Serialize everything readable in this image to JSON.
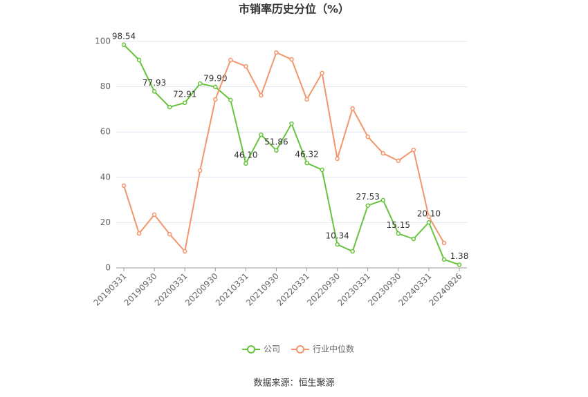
{
  "chart_data": {
    "type": "line",
    "title": "市销率历史分位（%）",
    "categories": [
      "20190331",
      null,
      "20190930",
      null,
      "20200331",
      null,
      "20200930",
      null,
      "20210331",
      null,
      "20210930",
      null,
      "20220331",
      null,
      "20220930",
      null,
      "20230331",
      null,
      "20230930",
      null,
      "20240331",
      null,
      "20240826"
    ],
    "series": [
      {
        "name": "公司",
        "color": "#66c43c",
        "values": [
          98.54,
          91.8,
          77.93,
          71.0,
          72.91,
          81.4,
          79.9,
          74.1,
          46.1,
          58.8,
          51.86,
          63.7,
          46.32,
          43.3,
          10.34,
          7.3,
          27.53,
          29.9,
          15.15,
          12.8,
          20.1,
          3.7,
          1.38
        ],
        "value_labels": [
          "98.54",
          null,
          "77.93",
          null,
          "72.91",
          null,
          "79.90",
          null,
          "46.10",
          null,
          "51.86",
          null,
          "46.32",
          null,
          "10.34",
          null,
          "27.53",
          null,
          "15.15",
          null,
          "20.10",
          null,
          "1.38"
        ]
      },
      {
        "name": "行业中位数",
        "color": "#f3956a",
        "values": [
          36.3,
          15.2,
          23.5,
          14.9,
          7.3,
          43.0,
          74.4,
          91.8,
          89.0,
          76.2,
          95.1,
          92.1,
          74.4,
          86.0,
          48.2,
          70.4,
          57.9,
          50.6,
          47.3,
          52.1,
          22.6,
          11.0,
          null
        ]
      }
    ],
    "ylim": [
      0,
      100
    ],
    "yticks": [
      0,
      20,
      40,
      60,
      80,
      100
    ],
    "grid": true,
    "legend": "bottom",
    "source": "数据来源：恒生聚源"
  }
}
